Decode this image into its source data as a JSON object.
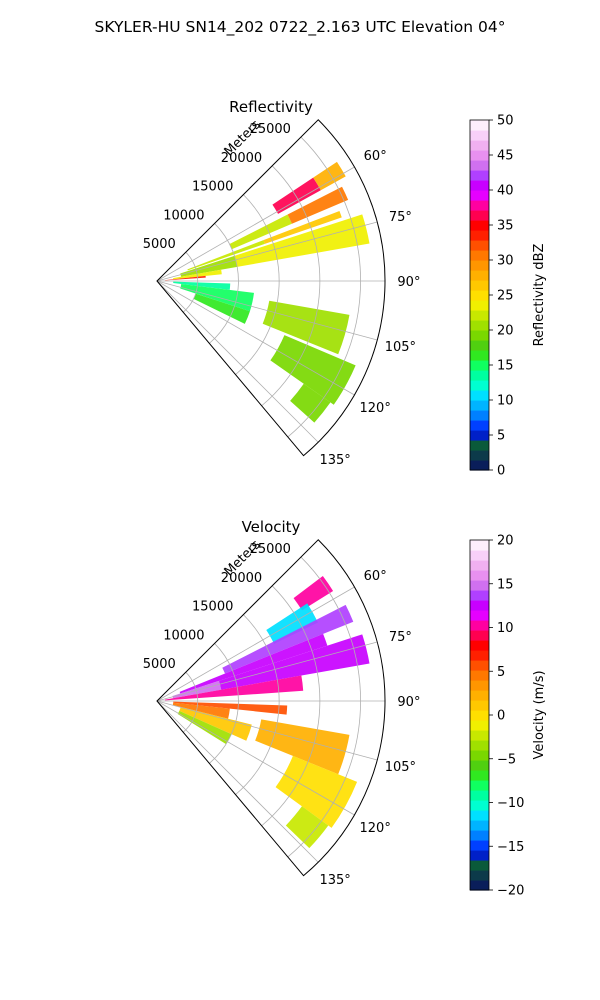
{
  "figure": {
    "suptitle": "SKYLER-HU  SN14_202  0722_2.163 UTC Elevation 04°"
  },
  "chart_data": [
    {
      "type": "heatmap",
      "projection": "polar-sector",
      "title": "Reflectivity",
      "radial_axis_label": "Meters",
      "radial_range": [
        0,
        28000
      ],
      "radial_ticks": [
        5000,
        10000,
        15000,
        20000,
        25000
      ],
      "radial_tick_labels": [
        "5000",
        "10000",
        "15000",
        "20000",
        "25000"
      ],
      "azimuth_range_deg": [
        45,
        140
      ],
      "azimuth_ticks_deg": [
        60,
        75,
        90,
        105,
        120,
        135
      ],
      "azimuth_tick_labels": [
        "60°",
        "75°",
        "90°",
        "105°",
        "120°",
        "135°"
      ],
      "grid": true,
      "colorbar": {
        "label": "Reflectivity dBZ",
        "range": [
          0,
          50
        ],
        "ticks": [
          0,
          5,
          10,
          15,
          20,
          25,
          30,
          35,
          40,
          45,
          50
        ],
        "tick_labels": [
          "0",
          "5",
          "10",
          "15",
          "20",
          "25",
          "30",
          "35",
          "40",
          "45",
          "50"
        ],
        "colors": [
          "#0a1e5a",
          "#0c3a4a",
          "#0a5a3a",
          "#0020c8",
          "#0040ff",
          "#0080ff",
          "#00b4ff",
          "#00e0ff",
          "#00ffd0",
          "#00ffa0",
          "#10ff60",
          "#30e820",
          "#50d010",
          "#7ad800",
          "#a0e000",
          "#c8e800",
          "#f0f000",
          "#ffe000",
          "#ffc800",
          "#ffb000",
          "#ff9600",
          "#ff7800",
          "#ff5000",
          "#ff2000",
          "#ff0000",
          "#ff0050",
          "#ff00a0",
          "#e600ff",
          "#c800ff",
          "#b040ff",
          "#d070f0",
          "#e890f0",
          "#f0b0f0",
          "#f8d0f8",
          "#fdeefc"
        ],
        "position": "right"
      },
      "sectors": [
        {
          "az": [
            56.5,
            61.0
          ],
          "r": [
            17000,
            23000
          ],
          "value": 36
        },
        {
          "az": [
            56.5,
            61.0
          ],
          "r": [
            23000,
            26500
          ],
          "value": 28
        },
        {
          "az": [
            63.0,
            67.0
          ],
          "r": [
            10000,
            18000
          ],
          "value": 22
        },
        {
          "az": [
            63.0,
            67.0
          ],
          "r": [
            18000,
            25500
          ],
          "value": 30
        },
        {
          "az": [
            69.0,
            71.0
          ],
          "r": [
            4000,
            14000
          ],
          "value": 22
        },
        {
          "az": [
            69.0,
            71.0
          ],
          "r": [
            14000,
            24000
          ],
          "value": 26
        },
        {
          "az": [
            72.0,
            80.0
          ],
          "r": [
            3000,
            10000
          ],
          "value": 20
        },
        {
          "az": [
            72.0,
            80.0
          ],
          "r": [
            10000,
            26500
          ],
          "value": 24
        },
        {
          "az": [
            80.0,
            84.0
          ],
          "r": [
            2000,
            8000
          ],
          "value": 23
        },
        {
          "az": [
            84.0,
            86.0
          ],
          "r": [
            1000,
            6000
          ],
          "value": 33
        },
        {
          "az": [
            92.0,
            97.0
          ],
          "r": [
            2000,
            9000
          ],
          "value": 14
        },
        {
          "az": [
            97.0,
            108.0
          ],
          "r": [
            3000,
            12000
          ],
          "value": 15
        },
        {
          "az": [
            108.0,
            116.0
          ],
          "r": [
            5000,
            12000
          ],
          "value": 16
        },
        {
          "az": [
            100.0,
            112.0
          ],
          "r": [
            14000,
            24000
          ],
          "value": 20
        },
        {
          "az": [
            113.0,
            125.0
          ],
          "r": [
            17000,
            26500
          ],
          "value": 19
        },
        {
          "az": [
            125.0,
            132.0
          ],
          "r": [
            22000,
            26000
          ],
          "value": 19
        }
      ]
    },
    {
      "type": "heatmap",
      "projection": "polar-sector",
      "title": "Velocity",
      "radial_axis_label": "Meters",
      "radial_range": [
        0,
        28000
      ],
      "radial_ticks": [
        5000,
        10000,
        15000,
        20000,
        25000
      ],
      "radial_tick_labels": [
        "5000",
        "10000",
        "15000",
        "20000",
        "25000"
      ],
      "azimuth_range_deg": [
        45,
        140
      ],
      "azimuth_ticks_deg": [
        60,
        75,
        90,
        105,
        120,
        135
      ],
      "azimuth_tick_labels": [
        "60°",
        "75°",
        "90°",
        "105°",
        "120°",
        "135°"
      ],
      "grid": true,
      "colorbar": {
        "label": "Velocity (m/s)",
        "range": [
          -20,
          20
        ],
        "ticks": [
          -20,
          -15,
          -10,
          -5,
          0,
          5,
          10,
          15,
          20
        ],
        "tick_labels": [
          "−20",
          "−15",
          "−10",
          "−5",
          "0",
          "5",
          "10",
          "15",
          "20"
        ],
        "colors": [
          "#0a1e5a",
          "#0c3a4a",
          "#0a5a3a",
          "#0020c8",
          "#0040ff",
          "#0080ff",
          "#00b4ff",
          "#00e0ff",
          "#00ffd0",
          "#00ffa0",
          "#10ff60",
          "#30e820",
          "#50d010",
          "#7ad800",
          "#a0e000",
          "#c8e800",
          "#f0f000",
          "#ffe000",
          "#ffc800",
          "#ffb000",
          "#ff9600",
          "#ff7800",
          "#ff5000",
          "#ff2000",
          "#ff0000",
          "#ff0050",
          "#ff00a0",
          "#e600ff",
          "#c800ff",
          "#b040ff",
          "#d070f0",
          "#e890f0",
          "#f0b0f0",
          "#f8d0f8",
          "#fdeefc"
        ],
        "position": "right"
      },
      "sectors": [
        {
          "az": [
            53.0,
            58.0
          ],
          "r": [
            21000,
            25500
          ],
          "value": 10
        },
        {
          "az": [
            57.0,
            64.0
          ],
          "r": [
            16000,
            22000
          ],
          "value": -11
        },
        {
          "az": [
            63.0,
            68.0
          ],
          "r": [
            9000,
            26000
          ],
          "value": 14
        },
        {
          "az": [
            68.0,
            72.0
          ],
          "r": [
            3000,
            22000
          ],
          "value": 13
        },
        {
          "az": [
            72.0,
            80.0
          ],
          "r": [
            2000,
            8000
          ],
          "value": 15
        },
        {
          "az": [
            72.0,
            80.0
          ],
          "r": [
            8000,
            26500
          ],
          "value": 12
        },
        {
          "az": [
            80.0,
            86.0
          ],
          "r": [
            1000,
            18000
          ],
          "value": 10
        },
        {
          "az": [
            92.0,
            96.0
          ],
          "r": [
            2000,
            16000
          ],
          "value": 6
        },
        {
          "az": [
            96.0,
            104.0
          ],
          "r": [
            2000,
            9000
          ],
          "value": 4
        },
        {
          "az": [
            104.0,
            114.0
          ],
          "r": [
            3000,
            12000
          ],
          "value": 1
        },
        {
          "az": [
            114.0,
            122.0
          ],
          "r": [
            3000,
            10000
          ],
          "value": -3
        },
        {
          "az": [
            100.0,
            112.0
          ],
          "r": [
            13000,
            24000
          ],
          "value": 2
        },
        {
          "az": [
            112.0,
            126.0
          ],
          "r": [
            18000,
            26500
          ],
          "value": 0
        },
        {
          "az": [
            126.0,
            134.0
          ],
          "r": [
            22000,
            26000
          ],
          "value": -2
        }
      ]
    }
  ]
}
